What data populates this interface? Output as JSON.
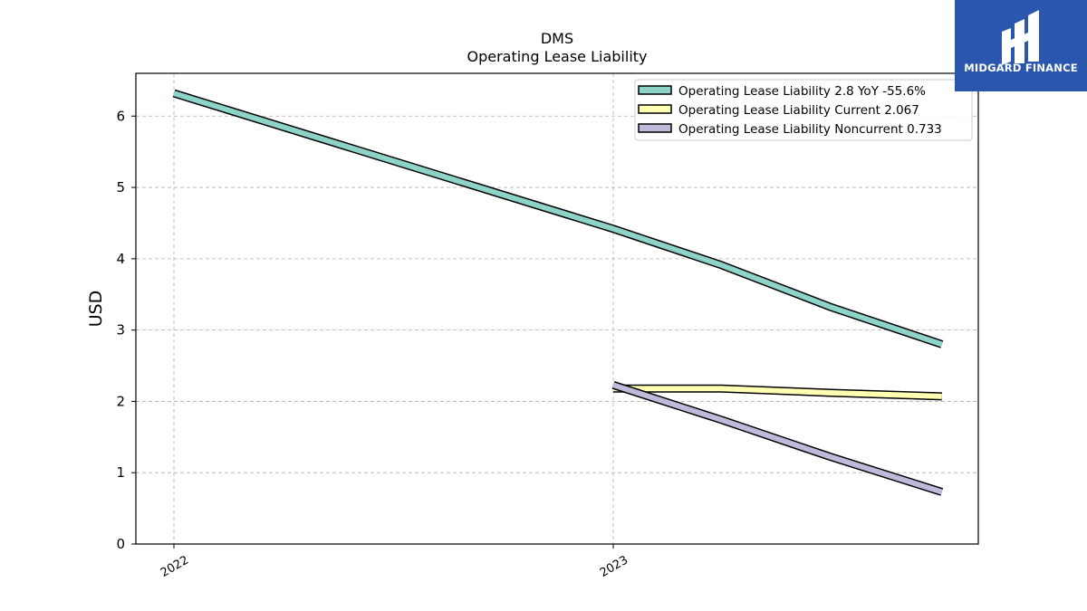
{
  "chart_data": {
    "type": "line",
    "title": "DMS",
    "subtitle": "Operating Lease Liability",
    "xlabel": "",
    "ylabel": "USD",
    "x_axis_type": "date",
    "x_ticks": [
      "2022",
      "2023"
    ],
    "ylim": [
      0,
      6.6
    ],
    "y_ticks": [
      0,
      1,
      2,
      3,
      4,
      5,
      6
    ],
    "grid": true,
    "legend_position": "top-right",
    "series": [
      {
        "name": "Operating Lease Liability  2.8 YoY -55.6%",
        "color": "#8dd3c7",
        "points": [
          {
            "x": "2022-01-01",
            "y": 6.32
          },
          {
            "x": "2023-01-01",
            "y": 4.42
          },
          {
            "x": "2023-04-01",
            "y": 3.91
          },
          {
            "x": "2023-07-01",
            "y": 3.32
          },
          {
            "x": "2023-10-01",
            "y": 2.8
          }
        ]
      },
      {
        "name": "Operating Lease Liability Current  2.067",
        "color": "#ffffb3",
        "points": [
          {
            "x": "2023-01-01",
            "y": 2.18
          },
          {
            "x": "2023-04-01",
            "y": 2.18
          },
          {
            "x": "2023-07-01",
            "y": 2.12
          },
          {
            "x": "2023-10-01",
            "y": 2.07
          }
        ]
      },
      {
        "name": "Operating Lease Liability Noncurrent  0.733",
        "color": "#bebada",
        "points": [
          {
            "x": "2023-01-01",
            "y": 2.23
          },
          {
            "x": "2023-04-01",
            "y": 1.74
          },
          {
            "x": "2023-07-01",
            "y": 1.22
          },
          {
            "x": "2023-10-01",
            "y": 0.73
          }
        ]
      }
    ]
  },
  "logo": {
    "text": "MIDGARD FINANCE",
    "background": "#2a56ad"
  }
}
